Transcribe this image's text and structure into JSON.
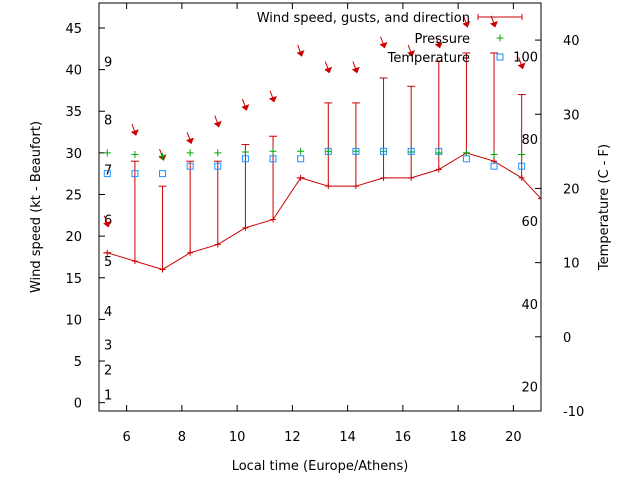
{
  "chart_data": {
    "type": "line",
    "title": "",
    "xlabel": "Local time (Europe/Athens)",
    "ylabel": "Wind speed (kt - Beaufort)",
    "y2label": "Temperature (C - F)",
    "xlim": [
      5,
      21
    ],
    "ylim": [
      -1,
      48
    ],
    "y2lim": [
      -10,
      45
    ],
    "x_ticks": [
      6,
      8,
      10,
      12,
      14,
      16,
      18,
      20
    ],
    "y_ticks": [
      0,
      5,
      10,
      15,
      20,
      25,
      30,
      35,
      40,
      45
    ],
    "y2_ticks": [
      -10,
      0,
      10,
      20,
      30,
      40
    ],
    "beaufort_labels": [
      {
        "label": "1",
        "kt": 1
      },
      {
        "label": "2",
        "kt": 4
      },
      {
        "label": "3",
        "kt": 7
      },
      {
        "label": "4",
        "kt": 11
      },
      {
        "label": "5",
        "kt": 17
      },
      {
        "label": "6",
        "kt": 22
      },
      {
        "label": "7",
        "kt": 28
      },
      {
        "label": "8",
        "kt": 34
      },
      {
        "label": "9",
        "kt": 41
      }
    ],
    "fahrenheit_labels": [
      {
        "label": "20",
        "c": -6.7
      },
      {
        "label": "40",
        "c": 4.4
      },
      {
        "label": "60",
        "c": 15.6
      },
      {
        "label": "80",
        "c": 26.7
      },
      {
        "label": "100",
        "c": 37.8
      }
    ],
    "legend": [
      {
        "name": "Wind speed, gusts, and direction",
        "marker": "errorbar",
        "color": "#cc0000"
      },
      {
        "name": "Pressure",
        "marker": "plus",
        "color": "#00aa00"
      },
      {
        "name": "Temperature",
        "marker": "square",
        "color": "#1e90ff"
      }
    ],
    "legend_position": "top-right",
    "series": [
      {
        "name": "Wind speed, gusts, and direction",
        "x": [
          5.3,
          6.3,
          7.3,
          8.3,
          9.3,
          10.3,
          11.3,
          12.3,
          13.3,
          14.3,
          15.3,
          16.3,
          17.3,
          18.3,
          19.3,
          20.3,
          21
        ],
        "values": [
          18,
          17,
          16,
          18,
          19,
          21,
          22,
          27,
          26,
          26,
          27,
          27,
          28,
          30,
          29,
          27,
          24.5
        ],
        "gusts": [
          18,
          29,
          26,
          29,
          29,
          31,
          32,
          27,
          36,
          36,
          39,
          38,
          41,
          42,
          42,
          37,
          null
        ],
        "direction_arrow_kt": [
          21.5,
          32.5,
          29.5,
          31.5,
          33.5,
          35.5,
          36.5,
          42,
          40,
          40,
          43,
          42,
          43,
          45.5,
          45.5,
          40.5,
          null
        ]
      },
      {
        "name": "Pressure",
        "x": [
          5.3,
          6.3,
          7.3,
          8.3,
          9.3,
          10.3,
          11.3,
          12.3,
          13.3,
          14.3,
          15.3,
          16.3,
          17.3,
          18.3,
          19.3,
          20.3
        ],
        "values_kt": [
          30,
          29.8,
          29.6,
          30,
          30,
          30.1,
          30.2,
          30.2,
          30.2,
          30.2,
          30.2,
          30.1,
          30,
          30,
          29.8,
          29.8
        ]
      },
      {
        "name": "Temperature",
        "x": [
          5.3,
          6.3,
          7.3,
          8.3,
          9.3,
          10.3,
          11.3,
          12.3,
          13.3,
          14.3,
          15.3,
          16.3,
          17.3,
          18.3,
          19.3,
          20.3
        ],
        "values_c": [
          22,
          22,
          22,
          23,
          23,
          24,
          24,
          24,
          25,
          25,
          25,
          25,
          25,
          24,
          23,
          23
        ]
      }
    ]
  }
}
